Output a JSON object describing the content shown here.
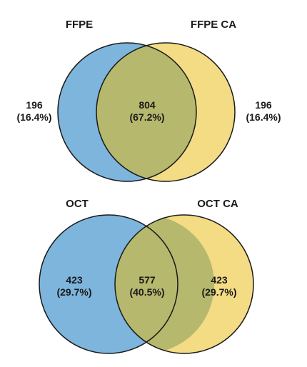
{
  "colors": {
    "left_set": "#7db5dc",
    "right_set": "#f3dc84",
    "overlap": "#b6b86d",
    "outline": "#1a1a1a"
  },
  "diagrams": [
    {
      "left_label": "FFPE",
      "right_label": "FFPE CA",
      "left_only": {
        "count": "196",
        "percent": "(16.4%)"
      },
      "overlap": {
        "count": "804",
        "percent": "(67.2%)"
      },
      "right_only": {
        "count": "196",
        "percent": "(16.4%)"
      }
    },
    {
      "left_label": "OCT",
      "right_label": "OCT CA",
      "left_only": {
        "count": "423",
        "percent": "(29.7%)"
      },
      "overlap": {
        "count": "577",
        "percent": "(40.5%)"
      },
      "right_only": {
        "count": "423",
        "percent": "(29.7%)"
      }
    }
  ]
}
